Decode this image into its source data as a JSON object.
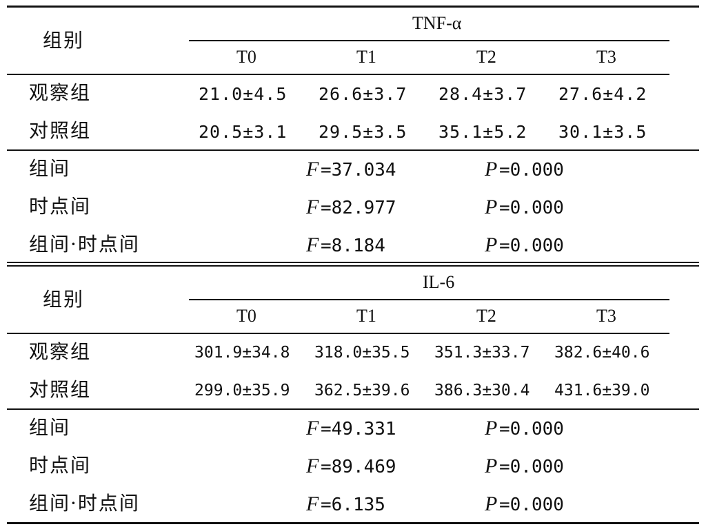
{
  "tnf": {
    "group_header": "组别",
    "marker": "TNF-α",
    "times": [
      "T0",
      "T1",
      "T2",
      "T3"
    ],
    "rows": [
      {
        "label": "观察组",
        "values": [
          "21.0±4.5",
          "26.6±3.7",
          "28.4±3.7",
          "27.6±4.2"
        ]
      },
      {
        "label": "对照组",
        "values": [
          "20.5±3.1",
          "29.5±3.5",
          "35.1±5.2",
          "30.1±3.5"
        ]
      }
    ],
    "stats": [
      {
        "label": "组间",
        "F": "=37.034",
        "P": "=0.000"
      },
      {
        "label": "时点间",
        "F": "=82.977",
        "P": "=0.000"
      },
      {
        "label": "组间·时点间",
        "F": "=8.184",
        "P": "=0.000"
      }
    ]
  },
  "il6": {
    "group_header": "组别",
    "marker": "IL-6",
    "times": [
      "T0",
      "T1",
      "T2",
      "T3"
    ],
    "rows": [
      {
        "label": "观察组",
        "values": [
          "301.9±34.8",
          "318.0±35.5",
          "351.3±33.7",
          "382.6±40.6"
        ]
      },
      {
        "label": "对照组",
        "values": [
          "299.0±35.9",
          "362.5±39.6",
          "386.3±30.4",
          "431.6±39.0"
        ]
      }
    ],
    "stats": [
      {
        "label": "组间",
        "F": "=49.331",
        "P": "=0.000"
      },
      {
        "label": "时点间",
        "F": "=89.469",
        "P": "=0.000"
      },
      {
        "label": "组间·时点间",
        "F": "=6.135",
        "P": "=0.000"
      }
    ]
  },
  "stat_symbols": {
    "F": "F",
    "P": "P"
  }
}
